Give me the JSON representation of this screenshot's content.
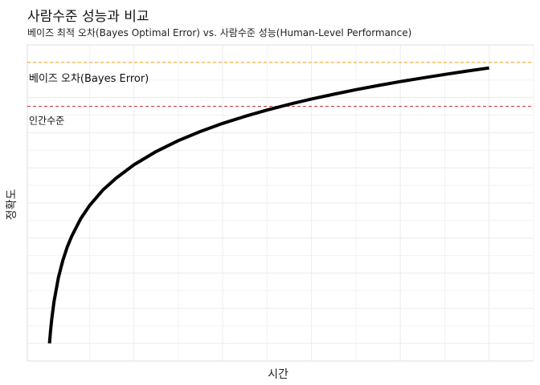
{
  "chart_data": {
    "type": "line",
    "title": "사람수준 성능과 비교",
    "subtitle": "베이즈 최적 오차(Bayes Optimal Error) vs. 사람수준 성능(Human-Level Performance)",
    "xlabel": "시간",
    "ylabel": "정확도",
    "grid": true,
    "legend": "none",
    "series": [
      {
        "color": "#000000",
        "x": [
          1,
          1.2,
          1.5,
          2,
          3,
          4,
          5,
          6,
          8,
          10,
          13,
          16,
          20,
          25,
          30,
          35,
          40,
          45,
          50,
          55,
          60,
          65,
          70,
          75,
          80,
          85,
          90,
          95,
          100
        ],
        "y": [
          0.0,
          0.062,
          0.139,
          0.237,
          0.375,
          0.473,
          0.549,
          0.611,
          0.709,
          0.785,
          0.873,
          0.941,
          1.017,
          1.093,
          1.155,
          1.207,
          1.253,
          1.293,
          1.329,
          1.362,
          1.392,
          1.419,
          1.445,
          1.469,
          1.491,
          1.512,
          1.532,
          1.551,
          1.569
        ]
      }
    ],
    "reference_lines": [
      {
        "label": "베이즈 오차(Bayes Error)",
        "y": 1.6,
        "color": "#E6A817",
        "style": "dashed"
      },
      {
        "label": "인간수준",
        "y": 1.35,
        "color": "#C0282D",
        "style": "dashed"
      }
    ],
    "xlim": [
      -4,
      110
    ],
    "ylim": [
      -0.1,
      1.7
    ]
  }
}
